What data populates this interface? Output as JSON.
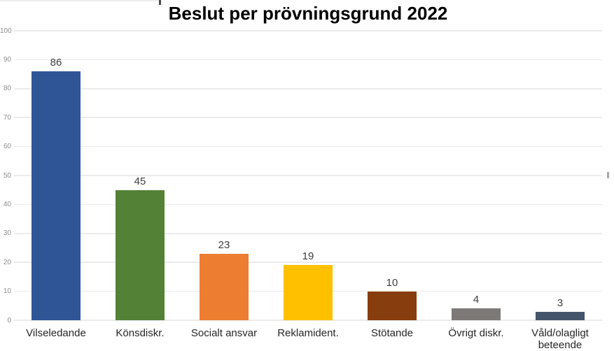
{
  "chart_data": {
    "type": "bar",
    "title": "Beslut per prövningsgrund 2022",
    "categories": [
      "Vilseledande",
      "Könsdiskr.",
      "Socialt ansvar",
      "Reklamident.",
      "Stötande",
      "Övrigt diskr.",
      "Våld/olagligt beteende"
    ],
    "values": [
      86,
      45,
      23,
      19,
      10,
      4,
      3
    ],
    "bar_colors": [
      "#2F5597",
      "#538135",
      "#ED7D31",
      "#FFC000",
      "#873D0D",
      "#7D7977",
      "#44546A"
    ],
    "xlabel": "",
    "ylabel": "",
    "ylim": [
      0,
      100
    ],
    "ytick_step": 10,
    "ytick_labels": [
      "0",
      "10",
      "20",
      "30",
      "40",
      "50",
      "60",
      "70",
      "80",
      "90",
      "100"
    ],
    "grid": true,
    "legend_position": "none",
    "value_labels_shown": true,
    "colors": {
      "grid": "#ebebeb",
      "y_tick_label": "#8e8e8e",
      "x_tick_label": "#262626",
      "value_label": "#3d3d3d",
      "title": "#000000",
      "background": "#ffffff"
    }
  }
}
